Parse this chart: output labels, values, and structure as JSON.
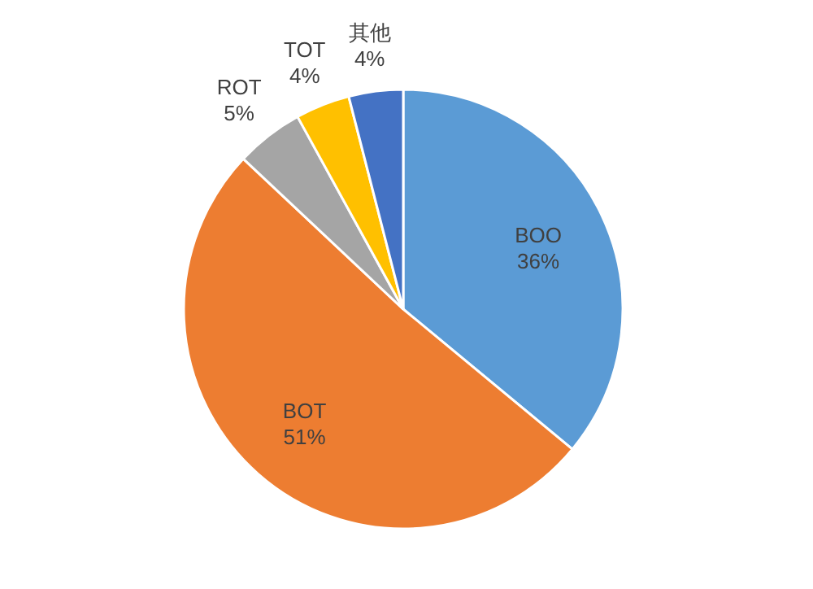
{
  "chart_data": {
    "type": "pie",
    "categories": [
      "BOO",
      "BOT",
      "ROT",
      "TOT",
      "其他"
    ],
    "values": [
      36,
      51,
      5,
      4,
      4
    ],
    "colors": [
      "#5b9bd5",
      "#ed7d31",
      "#a5a5a5",
      "#ffc000",
      "#4472c4"
    ],
    "value_labels": [
      "36%",
      "51%",
      "5%",
      "4%",
      "4%"
    ]
  }
}
